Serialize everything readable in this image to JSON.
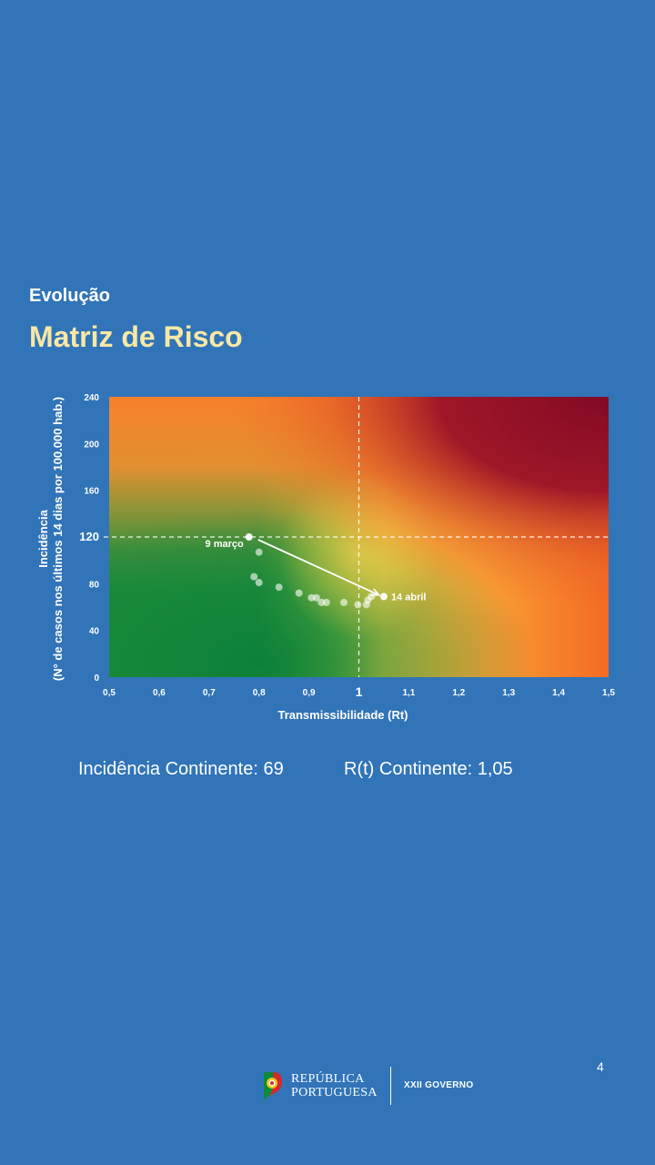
{
  "header": {
    "section": "Evolução",
    "title": "Matriz de Risco"
  },
  "chart_data": {
    "type": "scatter",
    "title": "Matriz de Risco",
    "xlabel": "Transmissibilidade (Rt)",
    "ylabel_line1": "Incidência",
    "ylabel_line2": "(N° de casos nos últimos 14 dias por 100.000 hab.)",
    "xlim": [
      0.5,
      1.5
    ],
    "ylim": [
      0,
      240
    ],
    "x_ticks": [
      0.5,
      0.6,
      0.7,
      0.8,
      0.9,
      1.0,
      1.1,
      1.2,
      1.3,
      1.4,
      1.5
    ],
    "x_tick_labels": [
      "0,5",
      "0,6",
      "0,7",
      "0,8",
      "0,9",
      "1",
      "1,1",
      "1,2",
      "1,3",
      "1,4",
      "1,5"
    ],
    "y_ticks": [
      0,
      40,
      80,
      120,
      160,
      200,
      240
    ],
    "y_tick_labels": [
      "0",
      "40",
      "80",
      "120",
      "160",
      "200",
      "240"
    ],
    "threshold_x": 1.0,
    "threshold_y": 120,
    "points": [
      {
        "x": 0.78,
        "y": 120
      },
      {
        "x": 0.8,
        "y": 107
      },
      {
        "x": 0.79,
        "y": 86
      },
      {
        "x": 0.8,
        "y": 81
      },
      {
        "x": 0.84,
        "y": 77
      },
      {
        "x": 0.88,
        "y": 72
      },
      {
        "x": 0.905,
        "y": 68
      },
      {
        "x": 0.915,
        "y": 68
      },
      {
        "x": 0.925,
        "y": 64
      },
      {
        "x": 0.935,
        "y": 64
      },
      {
        "x": 0.97,
        "y": 64
      },
      {
        "x": 0.998,
        "y": 62
      },
      {
        "x": 1.015,
        "y": 62
      },
      {
        "x": 1.018,
        "y": 66
      },
      {
        "x": 1.025,
        "y": 69
      },
      {
        "x": 1.05,
        "y": 69
      }
    ],
    "annotations": [
      {
        "label": "9 março",
        "x": 0.78,
        "y": 120
      },
      {
        "label": "14 abril",
        "x": 1.05,
        "y": 69
      }
    ],
    "colors": {
      "green": "#0a7f3a",
      "yellow": "#f0c843",
      "orange": "#f68b26",
      "red": "#8a0c25"
    }
  },
  "stats": {
    "incidence": "Incidência Continente: 69",
    "rt": "R(t) Continente: 1,05"
  },
  "page_number": "4",
  "footer": {
    "republic_line1": "REPÚBLICA",
    "republic_line2": "PORTUGUESA",
    "government": "XXII GOVERNO"
  }
}
